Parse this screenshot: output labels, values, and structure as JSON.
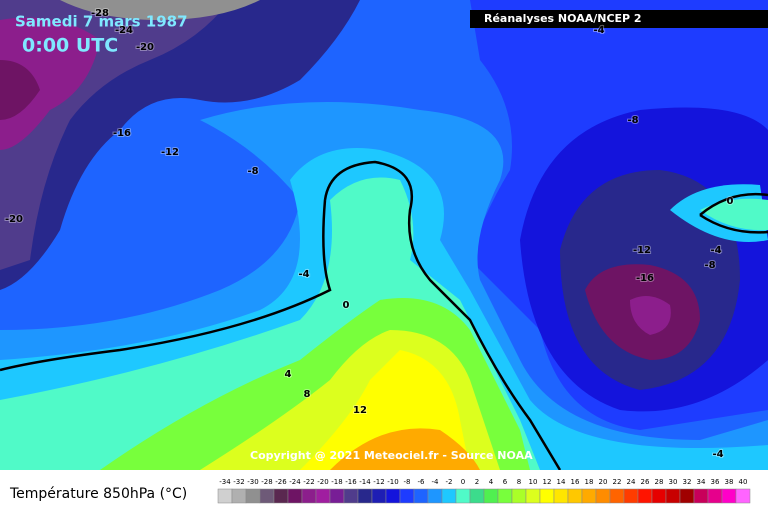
{
  "header": {
    "date": "Samedi 7 mars 1987",
    "time": "0:00 UTC",
    "source": "Réanalyses NOAA/NCEP 2"
  },
  "map": {
    "contour_labels": [
      -28,
      -24,
      -20,
      -16,
      -12,
      -8,
      -20,
      -4,
      0,
      4,
      8,
      12,
      -4,
      -8,
      0,
      -12,
      -4,
      -8,
      -16,
      -4
    ],
    "copyright": "Copyright @ 2021 Meteociel.fr - Source NOAA"
  },
  "legend": {
    "title": "Température 850hPa (°C)",
    "steps": [
      -34,
      -32,
      -30,
      -28,
      -26,
      -24,
      -22,
      -20,
      -18,
      -16,
      -14,
      -12,
      -10,
      -8,
      -6,
      -4,
      -2,
      0,
      2,
      4,
      6,
      8,
      10,
      12,
      14,
      16,
      18,
      20,
      22,
      24,
      26,
      28,
      30,
      32,
      34,
      36,
      38,
      40
    ],
    "colors": [
      "#d0d0d0",
      "#b0b0b0",
      "#909090",
      "#6e5a78",
      "#5a2850",
      "#6e1464",
      "#8c1e8c",
      "#a01ea0",
      "#781e96",
      "#503c8c",
      "#28288c",
      "#1e1eb4",
      "#1414dc",
      "#1e3cff",
      "#1e64ff",
      "#1e96ff",
      "#1ec8ff",
      "#50fac8",
      "#3cdc8c",
      "#50f050",
      "#78ff3c",
      "#aaff28",
      "#dcff1e",
      "#ffff00",
      "#ffe600",
      "#ffc800",
      "#ffaa00",
      "#ff8c00",
      "#ff6400",
      "#ff3c00",
      "#ff1400",
      "#e60000",
      "#c80000",
      "#a00000",
      "#c8005a",
      "#e6008c",
      "#ff00c8",
      "#ff64ff"
    ]
  }
}
